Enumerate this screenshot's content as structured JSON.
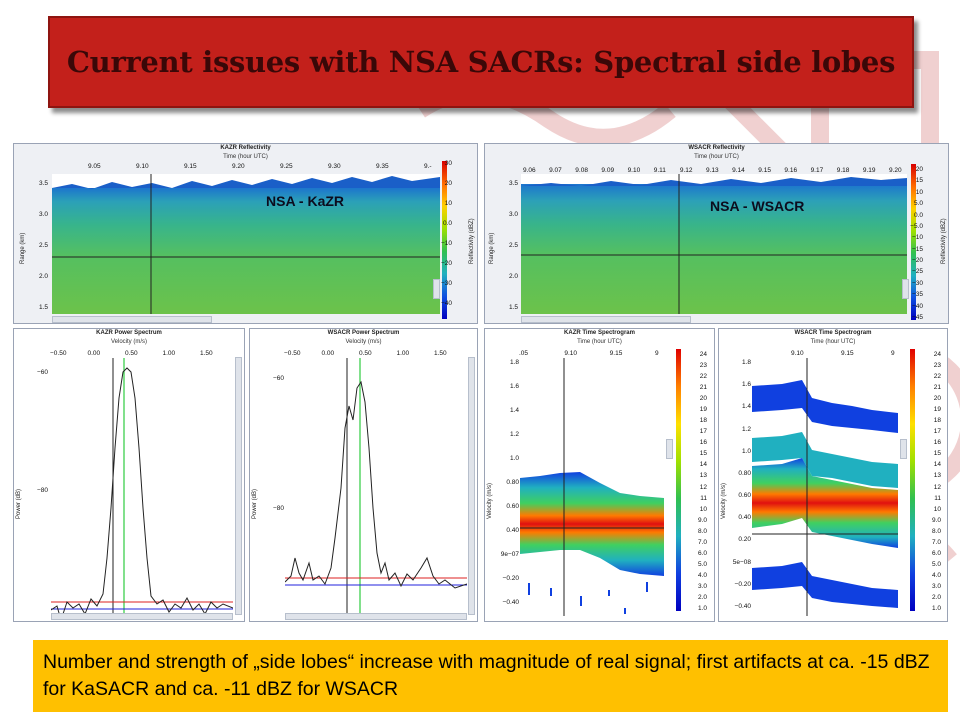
{
  "slide": {
    "title": "Current issues with NSA SACRs: Spectral side lobes",
    "caption": "Number and strength of „side lobes“ increase with magnitude of real signal; first artifacts at ca. -15 dBZ for KaSACR and ca. -11 dBZ for WSACR"
  },
  "labels": {
    "kazr_overlay": "NSA - KaZR",
    "wsacr_overlay": "NSA - WSACR"
  },
  "panels": {
    "kazr_refl": {
      "title": "KAZR Reflectivity",
      "xlabel": "Time (hour UTC)",
      "ylabel": "Range (km)",
      "cblabel": "Reflectivity (dBZ)",
      "xticks": [
        "9.05",
        "9.10",
        "9.15",
        "9.20",
        "9.25",
        "9.30",
        "9.35",
        "9.-"
      ],
      "yticks": [
        "3.5",
        "3.0",
        "2.5",
        "2.0",
        "1.5"
      ],
      "cbticks": [
        "30",
        "20",
        "10",
        "0.0",
        "−10",
        "−20",
        "−30",
        "−40"
      ]
    },
    "wsacr_refl": {
      "title": "WSACR Reflectivity",
      "xlabel": "Time (hour UTC)",
      "ylabel": "Range (km)",
      "cblabel": "Reflectivity (dBZ)",
      "xticks": [
        "9.06",
        "9.07",
        "9.08",
        "9.09",
        "9.10",
        "9.11",
        "9.12",
        "9.13",
        "9.14",
        "9.15",
        "9.16",
        "9.17",
        "9.18",
        "9.19",
        "9.20"
      ],
      "yticks": [
        "3.5",
        "3.0",
        "2.5",
        "2.0",
        "1.5"
      ],
      "cbticks": [
        "20",
        "15",
        "10",
        "5.0",
        "0.0",
        "−5.0",
        "−10",
        "−15",
        "−20",
        "−25",
        "−30",
        "−35",
        "−40",
        "−45"
      ]
    },
    "kazr_spec": {
      "title": "KAZR Power Spectrum",
      "xlabel": "Velocity (m/s)",
      "ylabel": "Power (dB)",
      "xticks": [
        "−0.50",
        "0.00",
        "0.50",
        "1.00",
        "1.50"
      ],
      "yticks": [
        "−60",
        "−80"
      ]
    },
    "wsacr_spec": {
      "title": "WSACR Power Spectrum",
      "xlabel": "Velocity (m/s)",
      "ylabel": "Power (dB)",
      "xticks": [
        "−0.50",
        "0.00",
        "0.50",
        "1.00",
        "1.50"
      ],
      "yticks": [
        "−60",
        "−80"
      ]
    },
    "kazr_tspec": {
      "title": "KAZR Time Spectrogram",
      "xlabel": "Time (hour UTC)",
      "ylabel": "Velocity (m/s)",
      "xticks": [
        ".05",
        "9.10",
        "9.15",
        "9"
      ],
      "yticks": [
        "1.8",
        "1.6",
        "1.4",
        "1.2",
        "1.0",
        "0.80",
        "0.60",
        "0.40",
        "9e−07",
        "−0.20",
        "−0.40"
      ],
      "cbticks": [
        "24",
        "23",
        "22",
        "21",
        "20",
        "19",
        "18",
        "17",
        "16",
        "15",
        "14",
        "13",
        "12",
        "11",
        "10",
        "9.0",
        "8.0",
        "7.0",
        "6.0",
        "5.0",
        "4.0",
        "3.0",
        "2.0",
        "1.0"
      ]
    },
    "wsacr_tspec": {
      "title": "WSACR Time Spectrogram",
      "xlabel": "Time (hour UTC)",
      "ylabel": "Velocity (m/s)",
      "xticks": [
        "9.10",
        "9.15",
        "9"
      ],
      "yticks": [
        "1.8",
        "1.6",
        "1.4",
        "1.2",
        "1.0",
        "0.80",
        "0.60",
        "0.40",
        "0.20",
        "5e−08",
        "−0.20",
        "−0.40"
      ],
      "cbticks": [
        "24",
        "23",
        "22",
        "21",
        "20",
        "19",
        "18",
        "17",
        "16",
        "15",
        "14",
        "13",
        "12",
        "11",
        "10",
        "9.0",
        "8.0",
        "7.0",
        "6.0",
        "5.0",
        "4.0",
        "3.0",
        "2.0",
        "1.0"
      ]
    }
  },
  "colors": {
    "title_bg": "#c3201b",
    "caption_bg": "#ffc000",
    "refl_bg": "#6cc24a",
    "refl_top": "#1e7bd0"
  }
}
